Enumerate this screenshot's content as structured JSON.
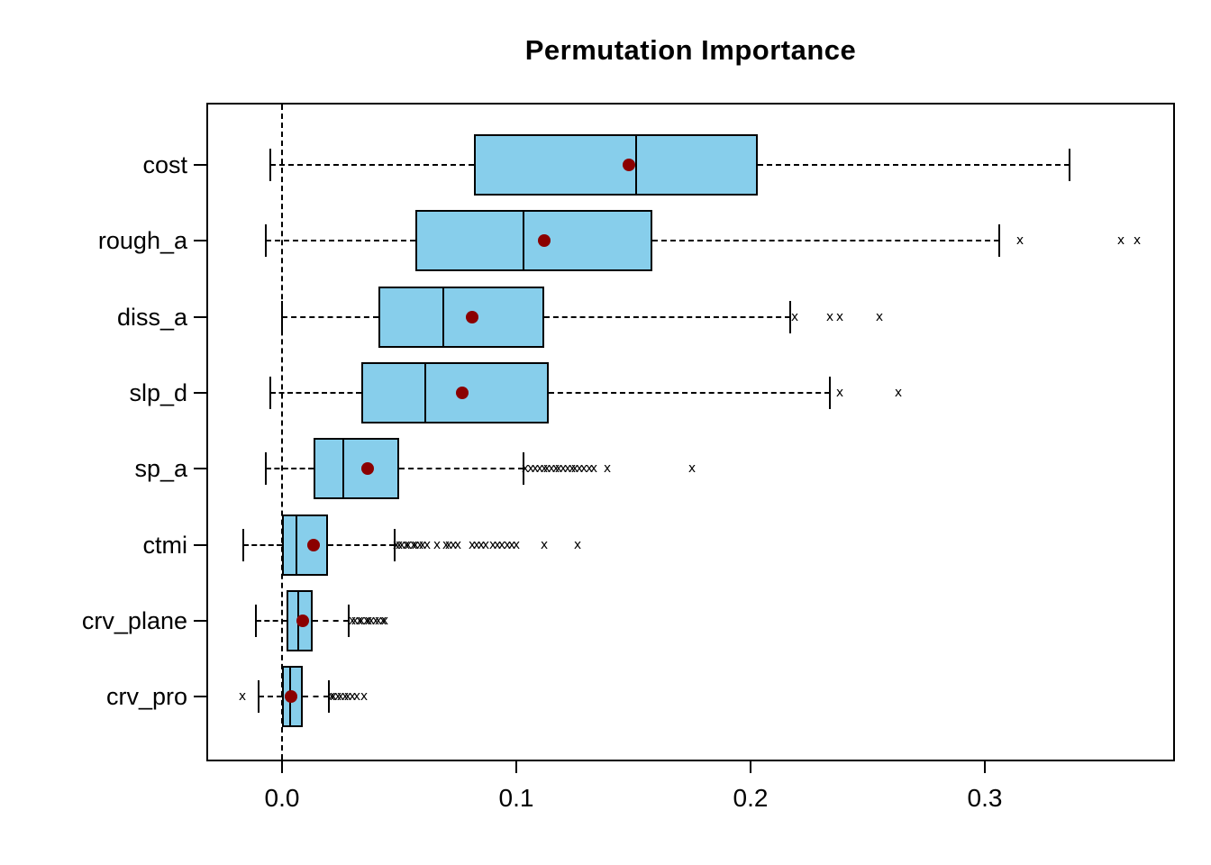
{
  "chart_data": {
    "type": "boxplot",
    "orientation": "horizontal",
    "title": "Permutation Importance",
    "xlabel": "",
    "ylabel": "",
    "x_ticks": [
      "0.0",
      "0.1",
      "0.2",
      "0.3"
    ],
    "x_tick_values": [
      0.0,
      0.1,
      0.2,
      0.3
    ],
    "xlim": [
      -0.032,
      0.381
    ],
    "zero_reference_line": 0.0,
    "grid": false,
    "outlier_symbol": "x",
    "colors": {
      "box_fill": "#87CEEB",
      "line": "#000000",
      "mean_point": "#8B0000",
      "background": "#FFFFFF"
    },
    "boxes": [
      {
        "label": "cost",
        "whisker_low": -0.005,
        "q1": 0.082,
        "median": 0.151,
        "mean": 0.148,
        "q3": 0.203,
        "whisker_high": 0.336,
        "outliers": []
      },
      {
        "label": "rough_a",
        "whisker_low": -0.007,
        "q1": 0.057,
        "median": 0.103,
        "mean": 0.112,
        "q3": 0.158,
        "whisker_high": 0.306,
        "outliers": [
          0.315,
          0.358,
          0.365
        ]
      },
      {
        "label": "diss_a",
        "whisker_low": 0.0,
        "q1": 0.041,
        "median": 0.069,
        "mean": 0.081,
        "q3": 0.112,
        "whisker_high": 0.217,
        "outliers": [
          0.219,
          0.234,
          0.238,
          0.255
        ]
      },
      {
        "label": "slp_d",
        "whisker_low": -0.005,
        "q1": 0.034,
        "median": 0.061,
        "mean": 0.077,
        "q3": 0.114,
        "whisker_high": 0.234,
        "outliers": [
          0.238,
          0.263
        ]
      },
      {
        "label": "sp_a",
        "whisker_low": -0.007,
        "q1": 0.0135,
        "median": 0.026,
        "mean": 0.0365,
        "q3": 0.05,
        "whisker_high": 0.103,
        "outliers": [
          0.104,
          0.106,
          0.108,
          0.11,
          0.112,
          0.113,
          0.115,
          0.117,
          0.118,
          0.12,
          0.122,
          0.124,
          0.125,
          0.127,
          0.129,
          0.131,
          0.133,
          0.139,
          0.175
        ]
      },
      {
        "label": "ctmi",
        "whisker_low": -0.0165,
        "q1": 0.0,
        "median": 0.006,
        "mean": 0.0135,
        "q3": 0.0195,
        "whisker_high": 0.048,
        "outliers": [
          0.049,
          0.05,
          0.051,
          0.053,
          0.054,
          0.056,
          0.057,
          0.059,
          0.06,
          0.062,
          0.066,
          0.07,
          0.071,
          0.073,
          0.075,
          0.081,
          0.083,
          0.085,
          0.087,
          0.09,
          0.092,
          0.094,
          0.096,
          0.098,
          0.1,
          0.112,
          0.126
        ]
      },
      {
        "label": "crv_plane",
        "whisker_low": -0.011,
        "q1": 0.002,
        "median": 0.007,
        "mean": 0.009,
        "q3": 0.013,
        "whisker_high": 0.0285,
        "outliers": [
          0.03,
          0.031,
          0.033,
          0.034,
          0.036,
          0.037,
          0.038,
          0.04,
          0.041,
          0.043,
          0.044
        ]
      },
      {
        "label": "crv_pro",
        "whisker_low": -0.01,
        "q1": 0.0,
        "median": 0.0035,
        "mean": 0.004,
        "q3": 0.009,
        "whisker_high": 0.02,
        "outliers": [
          -0.017,
          0.021,
          0.022,
          0.024,
          0.025,
          0.027,
          0.028,
          0.03,
          0.032,
          0.035
        ]
      }
    ]
  }
}
